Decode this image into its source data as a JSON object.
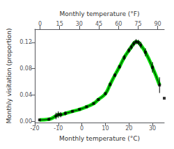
{
  "chart_data": {
    "type": "line",
    "xlabel": "Monthly temperature (°C)",
    "x2label": "Monthly temperature (°F)",
    "ylabel": "Monthly visitation (proportion)",
    "xlim": [
      -20,
      35
    ],
    "xticks": [
      -20,
      -10,
      0,
      10,
      20,
      30
    ],
    "x2lim": [
      -4,
      95
    ],
    "x2ticks": [
      0,
      15,
      30,
      45,
      60,
      75,
      90
    ],
    "ylim": [
      -0.002,
      0.14
    ],
    "yticks": [
      {
        "value": 0.0,
        "label": "0.00"
      },
      {
        "value": 0.04,
        "label": "0.04"
      },
      {
        "value": 0.08,
        "label": "0.08"
      },
      {
        "value": 0.12,
        "label": "0.12"
      }
    ],
    "grid": false,
    "series": [
      {
        "type": "band",
        "color": "#00dd00",
        "x": [
          -18,
          -14,
          -11,
          -10,
          -9,
          -7,
          -4,
          -1,
          2,
          5,
          7,
          10,
          12,
          14,
          16,
          18,
          20,
          21,
          22,
          23,
          24,
          25,
          27,
          30,
          33
        ],
        "values": [
          0.002,
          0.003,
          0.008,
          0.01,
          0.01,
          0.012,
          0.015,
          0.018,
          0.022,
          0.027,
          0.033,
          0.042,
          0.056,
          0.07,
          0.083,
          0.097,
          0.108,
          0.113,
          0.118,
          0.121,
          0.12,
          0.116,
          0.105,
          0.082,
          0.055
        ]
      },
      {
        "type": "line",
        "color": "#000000",
        "x": [
          -18,
          -14,
          -11,
          -10,
          -9,
          -7,
          -4,
          -1,
          2,
          5,
          7,
          10,
          12,
          14,
          16,
          18,
          20,
          21,
          22,
          23,
          24,
          25,
          27,
          30,
          33
        ],
        "values": [
          0.002,
          0.003,
          0.008,
          0.01,
          0.01,
          0.012,
          0.015,
          0.018,
          0.022,
          0.027,
          0.033,
          0.042,
          0.056,
          0.07,
          0.083,
          0.097,
          0.108,
          0.113,
          0.118,
          0.121,
          0.12,
          0.116,
          0.105,
          0.082,
          0.055
        ]
      },
      {
        "type": "scatter",
        "color": "#000000",
        "marker": "square",
        "x": [
          -18,
          -14,
          -11,
          -10,
          -9,
          -7,
          -4,
          -1,
          2,
          5,
          7,
          10,
          12,
          14,
          16,
          18,
          20,
          21,
          22,
          23,
          24,
          25,
          27,
          30,
          33,
          35
        ],
        "values": [
          0.002,
          0.003,
          0.008,
          0.01,
          0.01,
          0.012,
          0.015,
          0.018,
          0.022,
          0.027,
          0.033,
          0.042,
          0.056,
          0.07,
          0.083,
          0.097,
          0.108,
          0.113,
          0.118,
          0.121,
          0.12,
          0.116,
          0.105,
          0.082,
          0.055,
          0.035
        ],
        "errors": [
          0.001,
          0.002,
          0.005,
          0.005,
          0.004,
          0.003,
          0.002,
          0.001,
          0.001,
          0.001,
          0.001,
          0.002,
          0.003,
          0.003,
          0.003,
          0.004,
          0.004,
          0.004,
          0.004,
          0.004,
          0.004,
          0.005,
          0.006,
          0.008,
          0.012,
          0.0
        ]
      }
    ]
  }
}
